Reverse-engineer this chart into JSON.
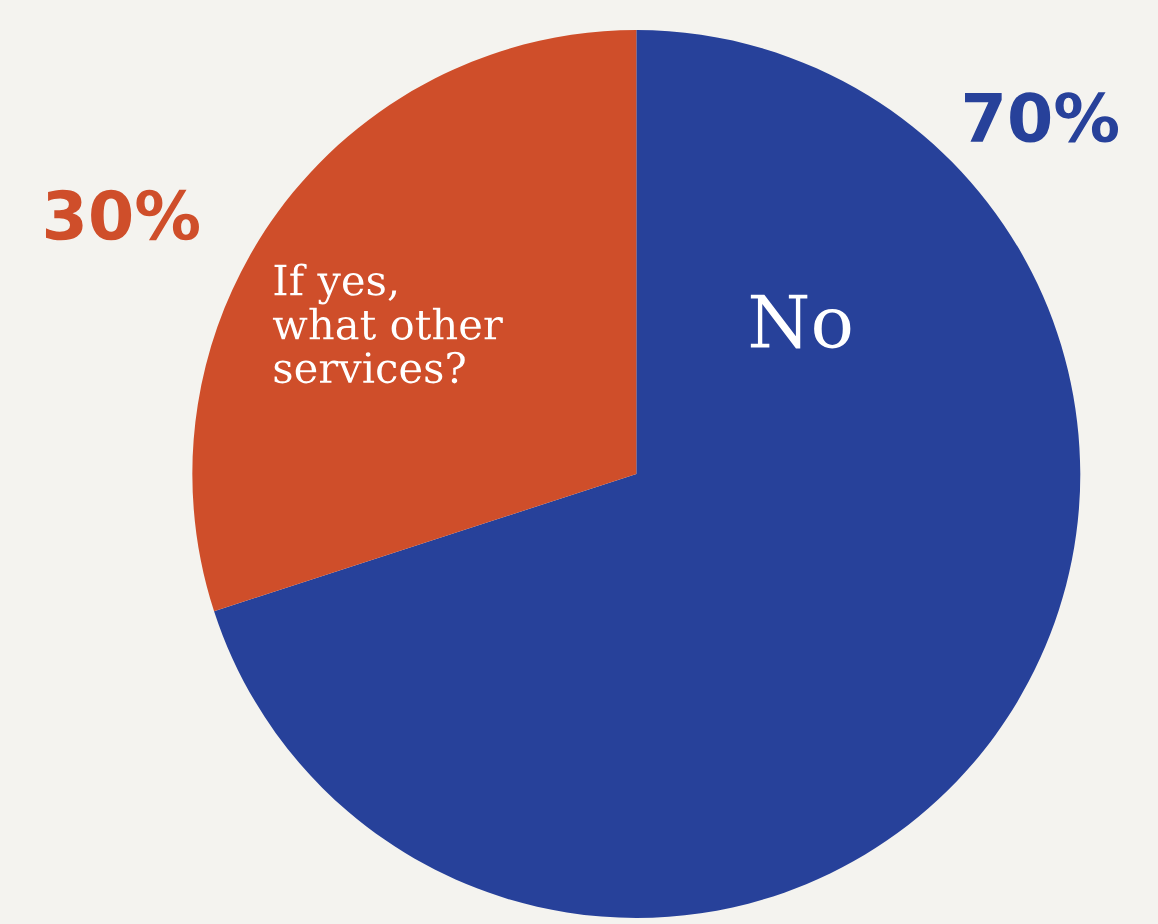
{
  "chart_data": {
    "type": "pie",
    "categories": [
      "No",
      "If yes,\nwhat other\nservices?"
    ],
    "values": [
      70,
      30
    ],
    "colors": [
      "#27419a",
      "#cf4e2a"
    ],
    "value_labels": [
      "70%",
      "30%"
    ]
  }
}
